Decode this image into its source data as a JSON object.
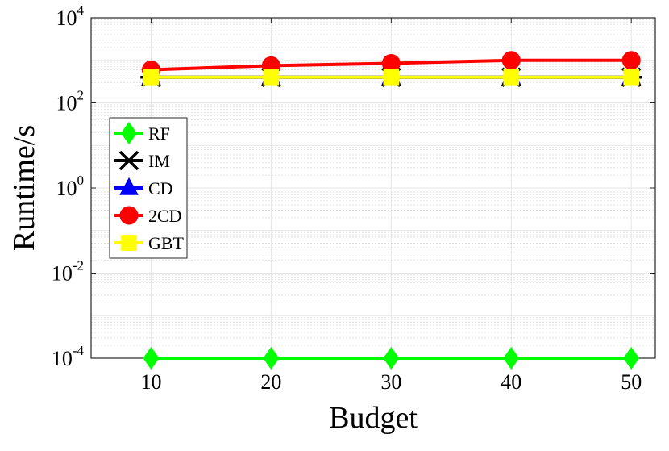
{
  "chart_data": {
    "type": "line",
    "xlabel": "Budget",
    "ylabel": "Runtime/s",
    "x": [
      10,
      20,
      30,
      40,
      50
    ],
    "xlim": [
      5,
      52
    ],
    "xticks": [
      "10",
      "20",
      "30",
      "40",
      "50"
    ],
    "yscale": "log",
    "ylim": [
      0.0001,
      10000
    ],
    "yticks": [
      {
        "base": "10",
        "exp": "4",
        "value": 10000
      },
      {
        "base": "10",
        "exp": "2",
        "value": 100
      },
      {
        "base": "10",
        "exp": "0",
        "value": 1
      },
      {
        "base": "10",
        "exp": "-2",
        "value": 0.01
      },
      {
        "base": "10",
        "exp": "-4",
        "value": 0.0001
      }
    ],
    "grid": true,
    "legend_position": "left",
    "series": [
      {
        "name": "RF",
        "color": "#00ff00",
        "marker": "diamond",
        "values": [
          0.0001,
          0.0001,
          0.0001,
          0.0001,
          0.0001
        ]
      },
      {
        "name": "IM",
        "color": "#000000",
        "marker": "asterisk",
        "values": [
          400,
          400,
          400,
          400,
          400
        ]
      },
      {
        "name": "CD",
        "color": "#0000ff",
        "marker": "triangle",
        "values": [
          400,
          400,
          400,
          400,
          400
        ]
      },
      {
        "name": "2CD",
        "color": "#ff0000",
        "marker": "circle",
        "values": [
          600,
          750,
          850,
          1000,
          1000
        ]
      },
      {
        "name": "GBT",
        "color": "#ffff00",
        "marker": "square",
        "values": [
          400,
          400,
          400,
          400,
          400
        ]
      }
    ]
  }
}
